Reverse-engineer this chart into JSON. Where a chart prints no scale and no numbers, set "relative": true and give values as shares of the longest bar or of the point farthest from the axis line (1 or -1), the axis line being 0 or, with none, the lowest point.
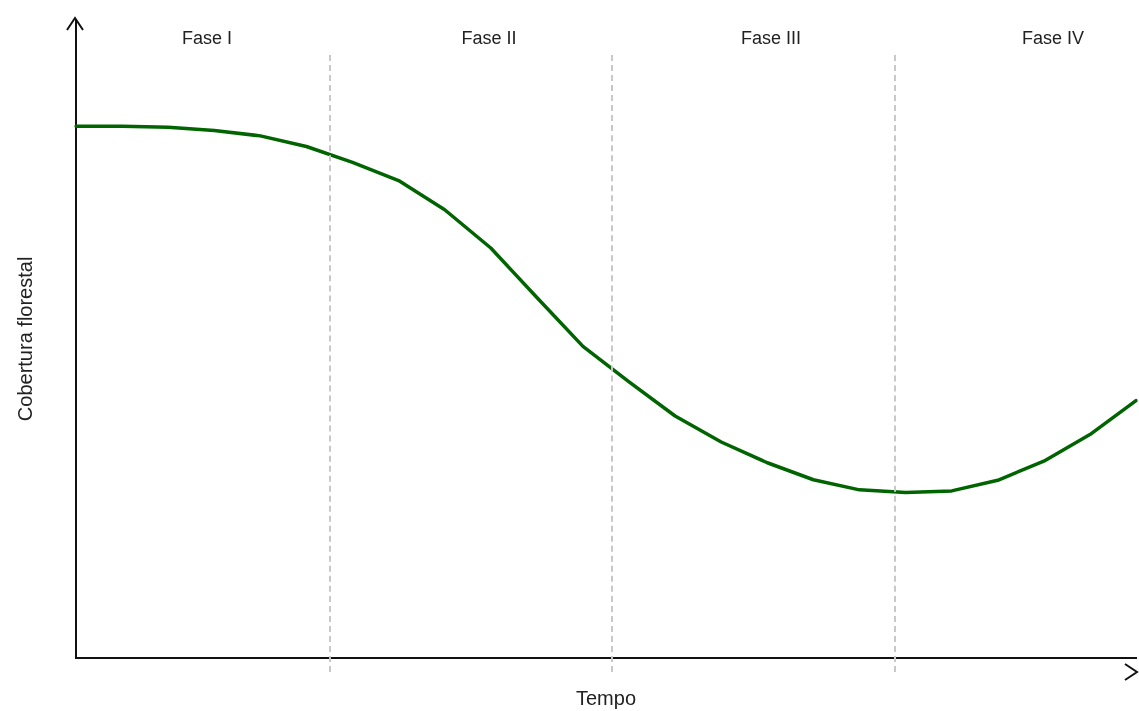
{
  "chart_data": {
    "type": "line",
    "xlabel": "Tempo",
    "ylabel": "Cobertura florestal",
    "relative": true,
    "marker": "none",
    "line_style": "solid",
    "categories": [
      null,
      null,
      null,
      null,
      null,
      null,
      null,
      null,
      null,
      null,
      null,
      null,
      null,
      null,
      null,
      null,
      null,
      null,
      null,
      null,
      null,
      null,
      null,
      null
    ],
    "series": [
      {
        "color": "#006400",
        "values": [
          1.0,
          1.0,
          0.998,
          0.992,
          0.982,
          0.962,
          0.932,
          0.898,
          0.843,
          0.771,
          0.678,
          0.586,
          0.519,
          0.455,
          0.406,
          0.367,
          0.335,
          0.316,
          0.311,
          0.314,
          0.334,
          0.37,
          0.42,
          0.484
        ]
      }
    ],
    "annotations": [
      "Fase I",
      "Fase II",
      "Fase III",
      "Fase IV"
    ]
  }
}
